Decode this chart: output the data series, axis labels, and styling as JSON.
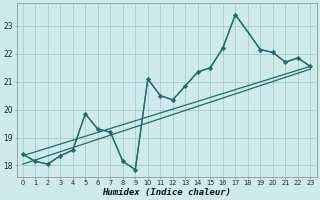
{
  "xlabel": "Humidex (Indice chaleur)",
  "bg_color": "#ceeaea",
  "grid_color": "#a8cccc",
  "line_color": "#1a6e6e",
  "xlim": [
    -0.5,
    23.5
  ],
  "ylim": [
    17.6,
    23.8
  ],
  "yticks": [
    18,
    19,
    20,
    21,
    22,
    23
  ],
  "xticks": [
    0,
    1,
    2,
    3,
    4,
    5,
    6,
    7,
    8,
    9,
    10,
    11,
    12,
    13,
    14,
    15,
    16,
    17,
    18,
    19,
    20,
    21,
    22,
    23
  ],
  "xtick_labels": [
    "0",
    "1",
    "2",
    "3",
    "4",
    "5",
    "6",
    "7",
    "8",
    "9",
    "10",
    "11",
    "12",
    "13",
    "14",
    "15",
    "16",
    "17",
    "18",
    "19",
    "20",
    "21",
    "22",
    "23"
  ],
  "series_jagged_x": [
    0,
    1,
    2,
    3,
    4,
    5,
    6,
    7,
    8,
    9,
    10,
    11,
    12,
    13,
    14,
    15,
    16,
    17,
    18,
    19,
    20,
    21,
    22,
    23
  ],
  "series_jagged_y": [
    18.4,
    18.15,
    18.05,
    18.35,
    18.55,
    19.85,
    19.3,
    19.2,
    18.15,
    17.85,
    21.1,
    20.5,
    20.35,
    20.85,
    21.35,
    21.5,
    22.2,
    23.4,
    22.8,
    22.15,
    22.05,
    21.7,
    21.85,
    21.55
  ],
  "series_marked_x": [
    0,
    1,
    2,
    3,
    4,
    5,
    6,
    7,
    8,
    9,
    10,
    11,
    12,
    13,
    14,
    15,
    16,
    17,
    19,
    20,
    21,
    22,
    23
  ],
  "series_marked_y": [
    18.4,
    18.15,
    18.05,
    18.35,
    18.55,
    19.85,
    19.3,
    19.2,
    18.15,
    17.85,
    21.1,
    20.5,
    20.35,
    20.85,
    21.35,
    21.5,
    22.2,
    23.4,
    22.15,
    22.05,
    21.7,
    21.85,
    21.55
  ],
  "trend1_x": [
    0,
    23
  ],
  "trend1_y": [
    18.35,
    21.55
  ],
  "trend2_x": [
    0,
    23
  ],
  "trend2_y": [
    18.05,
    21.45
  ]
}
